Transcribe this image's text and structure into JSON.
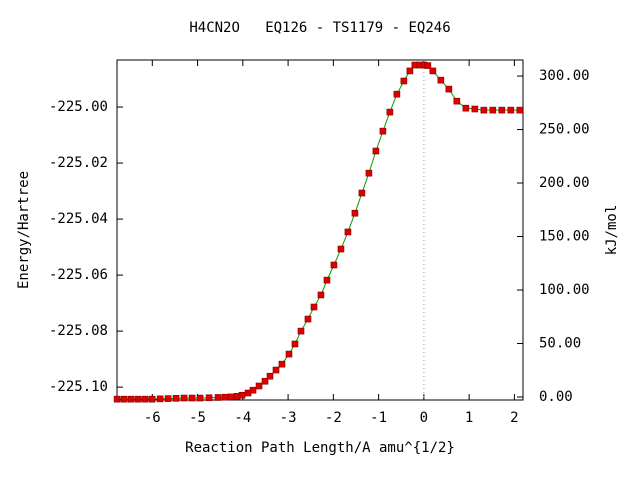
{
  "chart_data": {
    "type": "line",
    "title": "H4CN2O   EQ126 - TS1179 - EQ246",
    "xlabel": "Reaction Path Length/A amu^{1/2}",
    "ylabel": "Energy/Hartree",
    "y2label": "kJ/mol",
    "xlim": [
      -6.78,
      2.19
    ],
    "ylim": [
      -225.1046,
      -224.9832
    ],
    "y2lim": [
      -2.8,
      315.0
    ],
    "xticks": [
      -6,
      -5,
      -4,
      -3,
      -2,
      -1,
      0,
      1,
      2
    ],
    "yticks": [
      {
        "value": -225.1,
        "label": "-225.10"
      },
      {
        "value": -225.08,
        "label": "-225.08"
      },
      {
        "value": -225.06,
        "label": "-225.06"
      },
      {
        "value": -225.04,
        "label": "-225.04"
      },
      {
        "value": -225.02,
        "label": "-225.02"
      },
      {
        "value": -225.0,
        "label": "-225.00"
      }
    ],
    "y2ticks": [
      {
        "value": 0,
        "label": "0.00"
      },
      {
        "value": 50,
        "label": "50.00"
      },
      {
        "value": 100,
        "label": "100.00"
      },
      {
        "value": 150,
        "label": "150.00"
      },
      {
        "value": 200,
        "label": "200.00"
      },
      {
        "value": 250,
        "label": "250.00"
      },
      {
        "value": 300,
        "label": "300.00"
      }
    ],
    "vline_x": 0,
    "line_color": "#00a000",
    "marker_color": "#e00000",
    "series": [
      {
        "x": [
          -6.777,
          -6.623,
          -6.468,
          -6.313,
          -6.159,
          -6.004,
          -5.828,
          -5.651,
          -5.475,
          -5.298,
          -5.121,
          -4.945,
          -4.746,
          -4.547,
          -4.393,
          -4.261,
          -4.128,
          -4.018,
          -3.885,
          -3.775,
          -3.642,
          -3.51,
          -3.4,
          -3.267,
          -3.135,
          -2.98,
          -2.848,
          -2.715,
          -2.561,
          -2.428,
          -2.274,
          -2.141,
          -1.987,
          -1.832,
          -1.678,
          -1.523,
          -1.369,
          -1.214,
          -1.06,
          -0.905,
          -0.751,
          -0.596,
          -0.442,
          -0.309,
          -0.199,
          -0.088,
          0,
          0.088,
          0.199,
          0.375,
          0.552,
          0.728,
          0.927,
          1.126,
          1.325,
          1.523,
          1.722,
          1.921,
          2.119
        ],
        "values": [
          -225.1043,
          -225.1043,
          -225.1043,
          -225.1043,
          -225.1043,
          -225.1043,
          -225.1042,
          -225.1041,
          -225.104,
          -225.1039,
          -225.1039,
          -225.1039,
          -225.1038,
          -225.1037,
          -225.1036,
          -225.1035,
          -225.1033,
          -225.1029,
          -225.1021,
          -225.1011,
          -225.0996,
          -225.0979,
          -225.0961,
          -225.0939,
          -225.0918,
          -225.0882,
          -225.0846,
          -225.08,
          -225.0757,
          -225.0714,
          -225.0671,
          -225.0618,
          -225.0564,
          -225.0507,
          -225.0446,
          -225.0379,
          -225.0307,
          -225.0236,
          -225.0157,
          -225.0086,
          -225.0018,
          -224.9954,
          -224.9907,
          -224.9871,
          -224.985,
          -224.985,
          -224.985,
          -224.9852,
          -224.9871,
          -224.9904,
          -224.9936,
          -224.9979,
          -225.0004,
          -225.0007,
          -225.0011,
          -225.0011,
          -225.0011,
          -225.0011,
          -225.0011
        ]
      }
    ]
  }
}
